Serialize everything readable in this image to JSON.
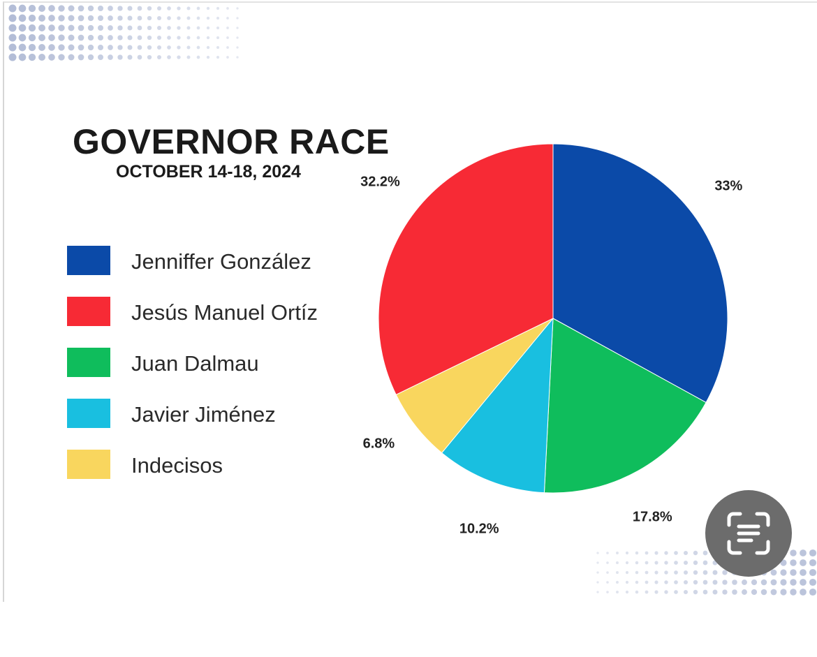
{
  "chart_data": {
    "type": "pie",
    "title": "GOVERNOR RACE",
    "subtitle": "OCTOBER 14-18, 2024",
    "legend_position": "left",
    "slices": [
      {
        "name": "Jenniffer González",
        "value": 33,
        "label": "33%",
        "color": "#0b4aa8"
      },
      {
        "name": "Juan Dalmau",
        "value": 17.8,
        "label": "17.8%",
        "color": "#0fbd5c"
      },
      {
        "name": "Javier Jiménez",
        "value": 10.2,
        "label": "10.2%",
        "color": "#19bfe0"
      },
      {
        "name": "Indecisos",
        "value": 6.8,
        "label": "6.8%",
        "color": "#f9d65e"
      },
      {
        "name": "Jesús Manuel Ortíz",
        "value": 32.2,
        "label": "32.2%",
        "color": "#f72a35"
      }
    ],
    "legend_order": [
      "Jenniffer González",
      "Jesús Manuel Ortíz",
      "Juan Dalmau",
      "Javier Jiménez",
      "Indecisos"
    ]
  },
  "overlay": {
    "icon": "text-scan-icon",
    "background_color": "#6c6c6c"
  }
}
